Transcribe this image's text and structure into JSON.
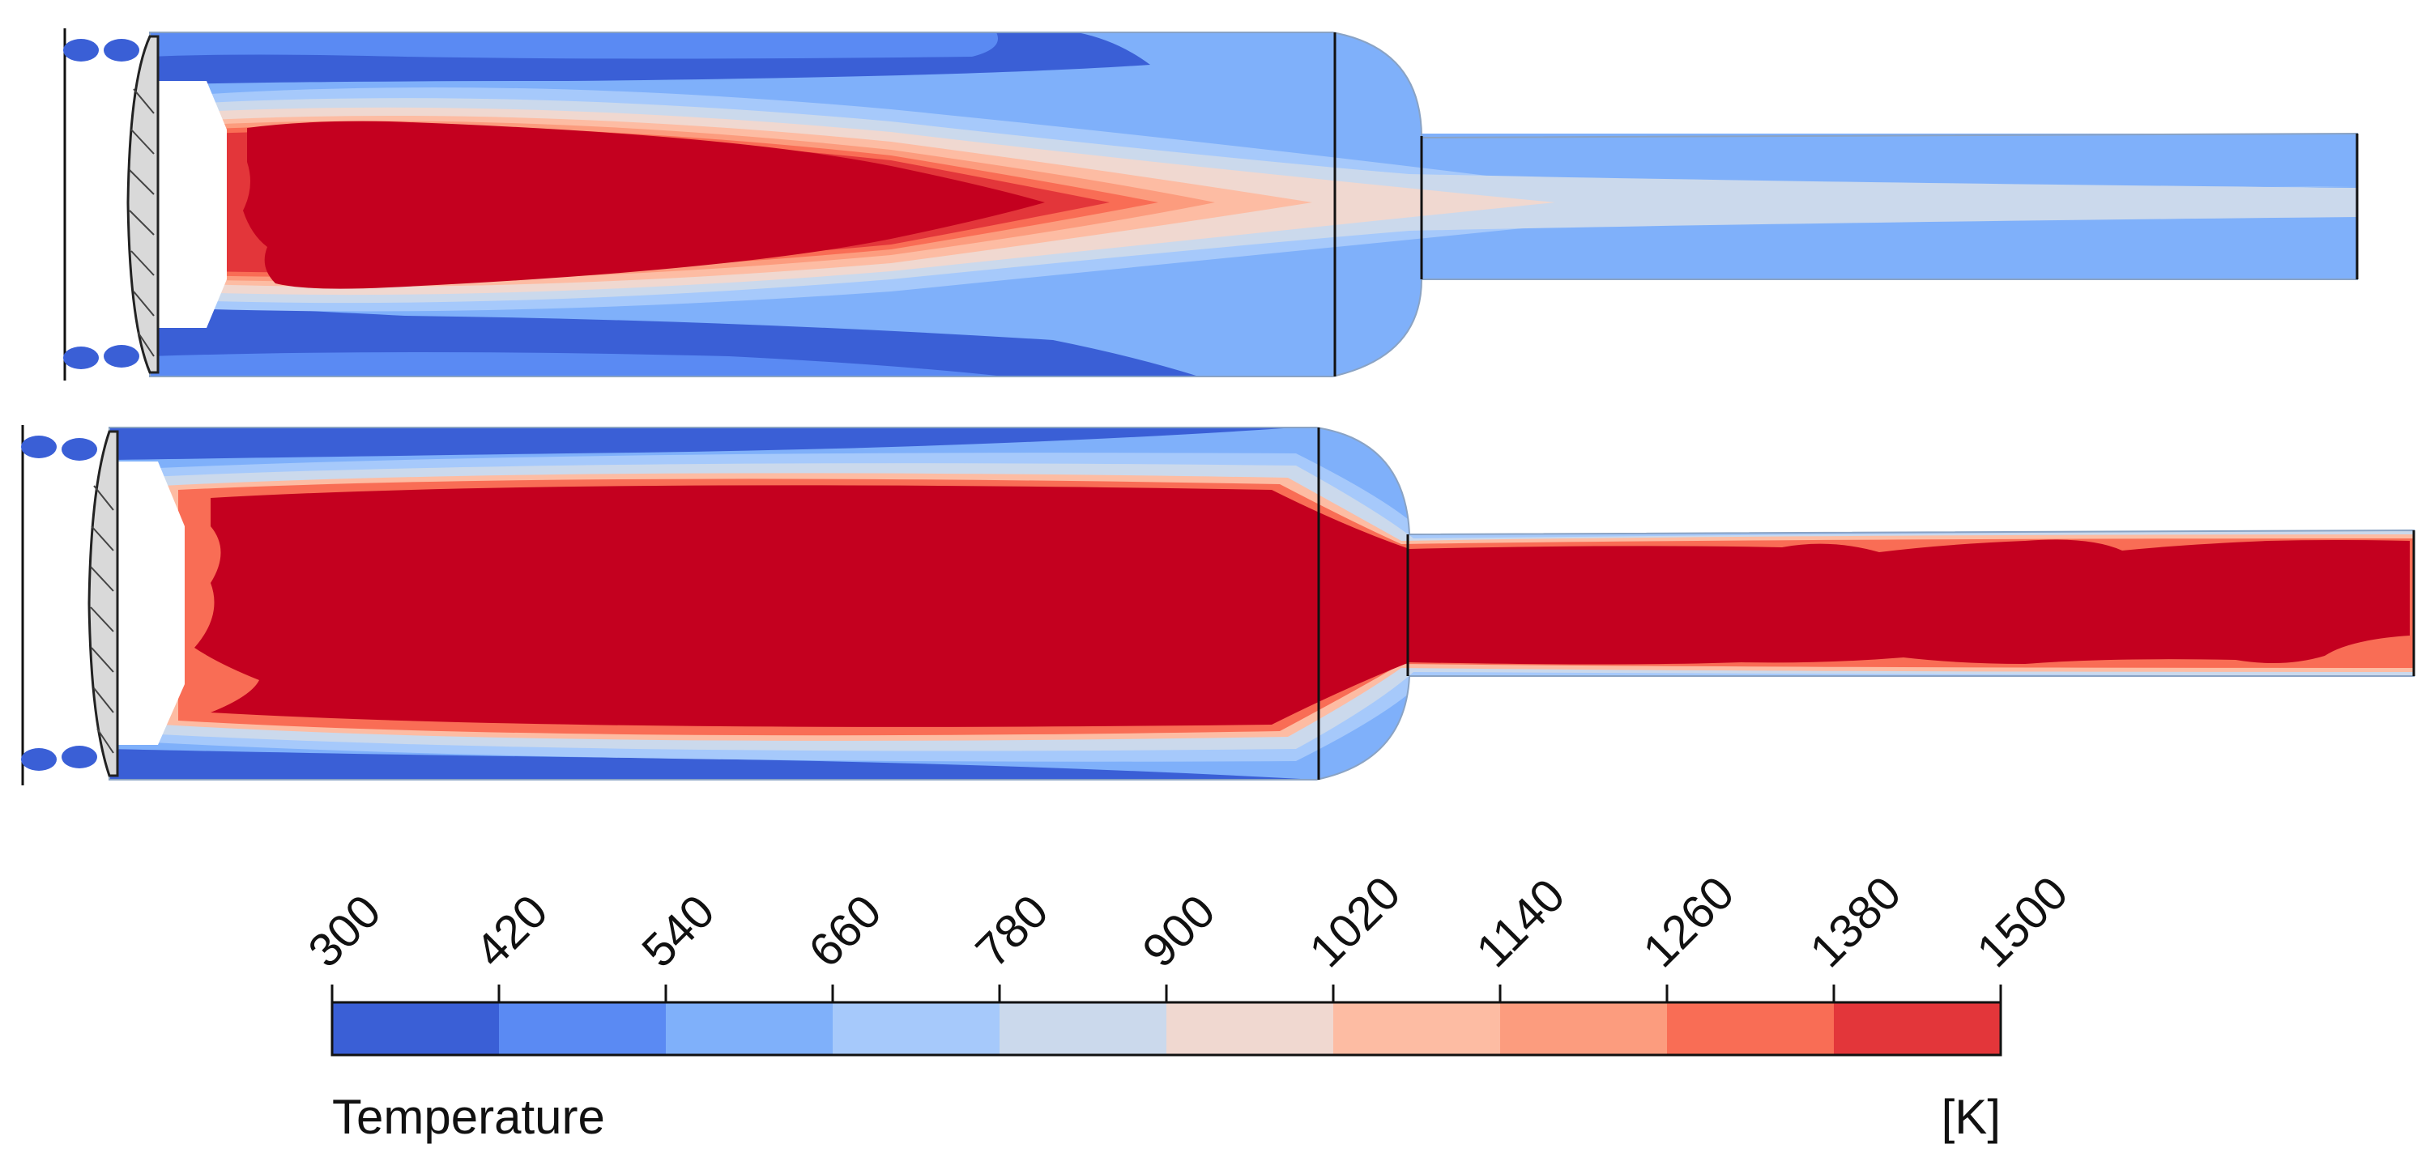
{
  "legend": {
    "title": "Temperature",
    "unit": "[K]",
    "tick_labels": [
      "300",
      "420",
      "540",
      "660",
      "780",
      "900",
      "1020",
      "1140",
      "1260",
      "1380",
      "1500"
    ],
    "colors": [
      "#3a5fd6",
      "#5a8af3",
      "#7fb0fa",
      "#a6c9fb",
      "#cbd9ec",
      "#f0d8d0",
      "#fdbca3",
      "#fc9c7e",
      "#f96d55",
      "#e3363a"
    ],
    "overflow_color": "#c4001f"
  },
  "contour_colors": {
    "c300": "#3a5fd6",
    "c420": "#5a8af3",
    "c540": "#7fb0fa",
    "c660": "#a6c9fb",
    "c780": "#cbd9ec",
    "c900": "#f0d8d0",
    "c1020": "#fdbca3",
    "c1140": "#fc9c7e",
    "c1260": "#f96d55",
    "c1380": "#e3363a",
    "c1500": "#c4001f"
  }
}
